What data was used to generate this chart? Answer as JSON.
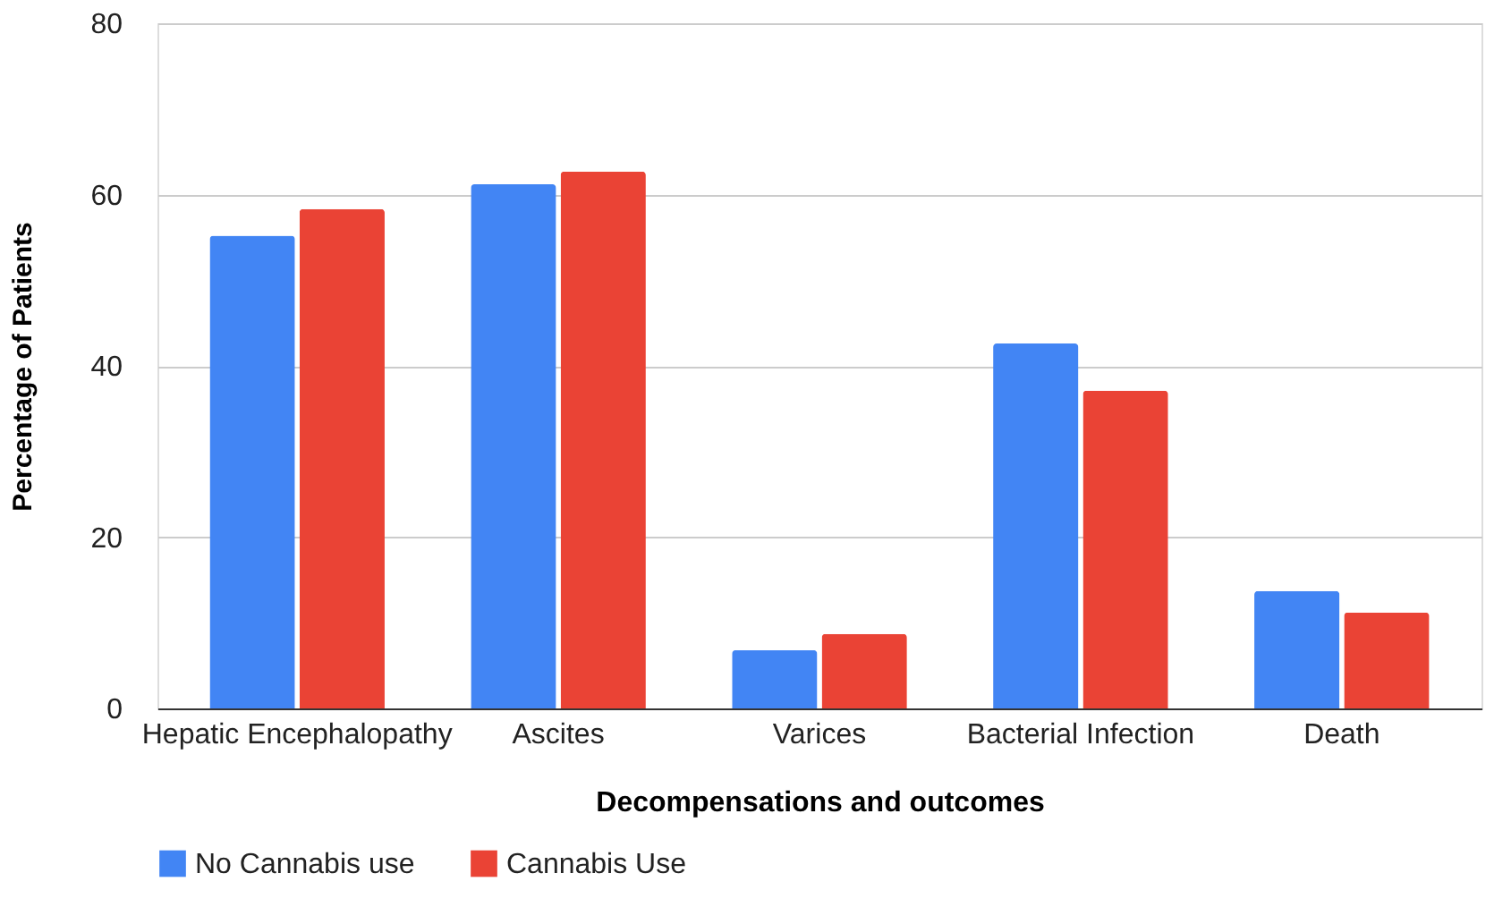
{
  "chart_data": {
    "type": "bar",
    "xlabel": "Decompensations and outcomes",
    "ylabel": "Percentage of Patients",
    "categories": [
      "Hepatic Encephalopathy",
      "Ascites",
      "Varices",
      "Bacterial Infection",
      "Death"
    ],
    "series": [
      {
        "name": "No Cannabis use",
        "color": "#4285f4",
        "values": [
          55.2,
          61.2,
          6.8,
          42.6,
          13.7
        ]
      },
      {
        "name": "Cannabis Use",
        "color": "#ea4335",
        "values": [
          58.3,
          62.7,
          8.7,
          37.1,
          11.2
        ]
      }
    ],
    "ylim": [
      0,
      80
    ],
    "yticks": [
      0,
      20,
      40,
      60,
      80
    ],
    "grid": "y",
    "legend": "bottom"
  }
}
